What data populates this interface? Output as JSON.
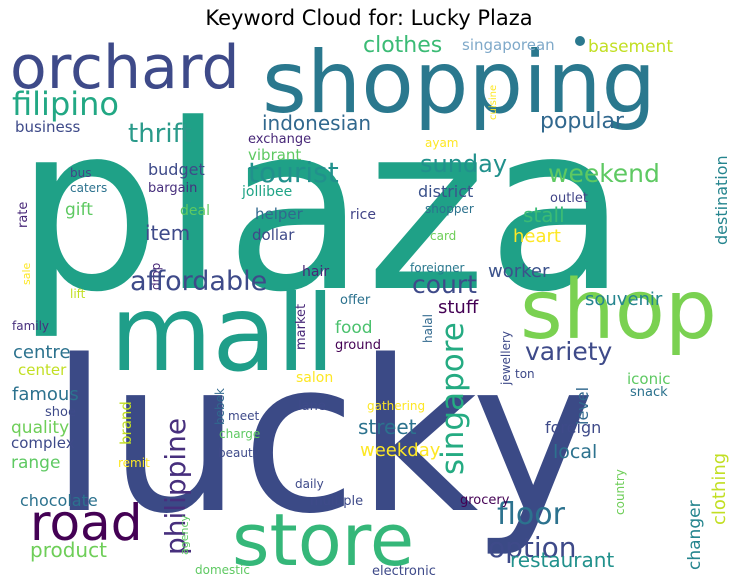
{
  "title": "Keyword Cloud for: Lucky Plaza",
  "palette": [
    "#440154",
    "#46327e",
    "#365c8d",
    "#277f8e",
    "#1fa187",
    "#4ac16d",
    "#a0da39",
    "#fde725"
  ],
  "words": [
    {
      "text": "plaza",
      "color": "#1fa187"
    },
    {
      "text": "lucky",
      "color": "#3b4a86"
    },
    {
      "text": "shopping",
      "color": "#2a788e"
    },
    {
      "text": "mall",
      "color": "#1f9e89"
    },
    {
      "text": "orchard",
      "color": "#3e4a89"
    },
    {
      "text": "shop",
      "color": "#7ad151"
    },
    {
      "text": "store",
      "color": "#35b779"
    },
    {
      "text": "road",
      "color": "#440154"
    },
    {
      "text": "filipino",
      "color": "#22a884"
    },
    {
      "text": "thrift",
      "color": "#2a9a8a"
    },
    {
      "text": "clothes",
      "color": "#3bbb75"
    },
    {
      "text": "singaporean",
      "color": "#7fa9c9"
    },
    {
      "text": "basement",
      "color": "#c2df23"
    },
    {
      "text": "indonesian",
      "color": "#31688e"
    },
    {
      "text": "popular",
      "color": "#31688e"
    },
    {
      "text": "business",
      "color": "#3e4a89"
    },
    {
      "text": "exchange",
      "color": "#482878"
    },
    {
      "text": "cuisine",
      "color": "#fde725"
    },
    {
      "text": "ayam",
      "color": "#fde725"
    },
    {
      "text": "destination",
      "color": "#25858e"
    },
    {
      "text": "tourist",
      "color": "#21918c"
    },
    {
      "text": "sunday",
      "color": "#21918c"
    },
    {
      "text": "weekend",
      "color": "#5ec962"
    },
    {
      "text": "budget",
      "color": "#3e4a89"
    },
    {
      "text": "vibrant",
      "color": "#5ec962"
    },
    {
      "text": "bus",
      "color": "#414487"
    },
    {
      "text": "caters",
      "color": "#2c728e"
    },
    {
      "text": "bargain",
      "color": "#472f7d"
    },
    {
      "text": "jollibee",
      "color": "#20a486"
    },
    {
      "text": "district",
      "color": "#3b528b"
    },
    {
      "text": "outlet",
      "color": "#414487"
    },
    {
      "text": "shopper",
      "color": "#2c728e"
    },
    {
      "text": "rate",
      "color": "#482878"
    },
    {
      "text": "gift",
      "color": "#5ec962"
    },
    {
      "text": "deal",
      "color": "#5ec962"
    },
    {
      "text": "helper",
      "color": "#31688e"
    },
    {
      "text": "rice",
      "color": "#414487"
    },
    {
      "text": "stall",
      "color": "#3bbb75"
    },
    {
      "text": "item",
      "color": "#3e4a89"
    },
    {
      "text": "dollar",
      "color": "#3e4a89"
    },
    {
      "text": "card",
      "color": "#6ece58"
    },
    {
      "text": "heart",
      "color": "#fde725"
    },
    {
      "text": "drop",
      "color": "#482878"
    },
    {
      "text": "affordable",
      "color": "#3e4a89"
    },
    {
      "text": "court",
      "color": "#3e4a89"
    },
    {
      "text": "souvenir",
      "color": "#25858e"
    },
    {
      "text": "sale",
      "color": "#fde725"
    },
    {
      "text": "lift",
      "color": "#c2df23"
    },
    {
      "text": "hair",
      "color": "#482878"
    },
    {
      "text": "foreigner",
      "color": "#2a788e"
    },
    {
      "text": "worker",
      "color": "#3b528b"
    },
    {
      "text": "stuff",
      "color": "#440154"
    },
    {
      "text": "family",
      "color": "#472f7d"
    },
    {
      "text": "market",
      "color": "#482878"
    },
    {
      "text": "offer",
      "color": "#2c728e"
    },
    {
      "text": "food",
      "color": "#4ac16d"
    },
    {
      "text": "singapore",
      "color": "#25ab82"
    },
    {
      "text": "ground",
      "color": "#440154"
    },
    {
      "text": "halal",
      "color": "#31688e"
    },
    {
      "text": "jewellery",
      "color": "#3e4a89"
    },
    {
      "text": "variety",
      "color": "#3e4a89"
    },
    {
      "text": "centre",
      "color": "#2c728e"
    },
    {
      "text": "center",
      "color": "#c2df23"
    },
    {
      "text": "philippine",
      "color": "#472f7d"
    },
    {
      "text": "ton",
      "color": "#3e4a89"
    },
    {
      "text": "famous",
      "color": "#2c728e"
    },
    {
      "text": "shoe",
      "color": "#3e4a89"
    },
    {
      "text": "salon",
      "color": "#fde725"
    },
    {
      "text": "level",
      "color": "#31688e"
    },
    {
      "text": "iconic",
      "color": "#5ec962"
    },
    {
      "text": "snack",
      "color": "#2c728e"
    },
    {
      "text": "bebek",
      "color": "#31688e"
    },
    {
      "text": "lane",
      "color": "#3e4a89"
    },
    {
      "text": "gathering",
      "color": "#fde725"
    },
    {
      "text": "quality",
      "color": "#6ece58"
    },
    {
      "text": "meet",
      "color": "#3e4a89"
    },
    {
      "text": "street",
      "color": "#2c728e"
    },
    {
      "text": "brand",
      "color": "#c2df23"
    },
    {
      "text": "foreign",
      "color": "#3e4a89"
    },
    {
      "text": "complex",
      "color": "#3e4a89"
    },
    {
      "text": "charge",
      "color": "#5ec962"
    },
    {
      "text": "local",
      "color": "#2c728e"
    },
    {
      "text": "weekday",
      "color": "#fde725"
    },
    {
      "text": "beauty",
      "color": "#3e4a89"
    },
    {
      "text": "range",
      "color": "#5ec962"
    },
    {
      "text": "remit",
      "color": "#fde725"
    },
    {
      "text": "clothing",
      "color": "#c2df23"
    },
    {
      "text": "daily",
      "color": "#3e4a89"
    },
    {
      "text": "country",
      "color": "#6ece58"
    },
    {
      "text": "changer",
      "color": "#25858e"
    },
    {
      "text": "floor",
      "color": "#2c728e"
    },
    {
      "text": "multiple",
      "color": "#3e4a89"
    },
    {
      "text": "grocery",
      "color": "#440154"
    },
    {
      "text": "chocolate",
      "color": "#2c728e"
    },
    {
      "text": "agency",
      "color": "#5ec962"
    },
    {
      "text": "option",
      "color": "#3e4a89"
    },
    {
      "text": "product",
      "color": "#6ece58"
    },
    {
      "text": "restaurant",
      "color": "#21918c"
    },
    {
      "text": "domestic",
      "color": "#5ec962"
    },
    {
      "text": "electronic",
      "color": "#3e4a89"
    }
  ]
}
